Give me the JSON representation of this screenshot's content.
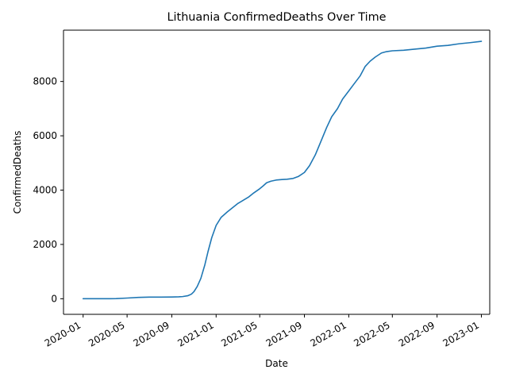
{
  "chart_data": {
    "type": "line",
    "title": "Lithuania  ConfirmedDeaths Over Time",
    "xlabel": "Date",
    "ylabel": "ConfirmedDeaths",
    "xlim": [
      "2019-11-08",
      "2023-01-24"
    ],
    "ylim": [
      -574,
      9890
    ],
    "x_ticks": [
      "2020-01",
      "2020-05",
      "2020-09",
      "2021-01",
      "2021-05",
      "2021-09",
      "2022-01",
      "2022-05",
      "2022-09",
      "2023-01"
    ],
    "y_ticks": [
      0,
      2000,
      4000,
      6000,
      8000
    ],
    "grid": false,
    "legend": "none",
    "series": [
      {
        "color": "#1f77b4",
        "x": [
          "2020-01-01",
          "2020-03-15",
          "2020-04-01",
          "2020-05-01",
          "2020-06-01",
          "2020-07-01",
          "2020-08-01",
          "2020-09-01",
          "2020-09-20",
          "2020-10-01",
          "2020-10-15",
          "2020-10-25",
          "2020-11-01",
          "2020-11-10",
          "2020-11-20",
          "2020-12-01",
          "2020-12-10",
          "2020-12-20",
          "2021-01-01",
          "2021-01-15",
          "2021-02-01",
          "2021-02-15",
          "2021-03-01",
          "2021-04-01",
          "2021-04-15",
          "2021-05-01",
          "2021-05-10",
          "2021-05-20",
          "2021-06-01",
          "2021-06-15",
          "2021-07-01",
          "2021-07-15",
          "2021-08-01",
          "2021-08-15",
          "2021-09-01",
          "2021-09-15",
          "2021-10-01",
          "2021-10-15",
          "2021-11-01",
          "2021-11-15",
          "2021-12-01",
          "2021-12-15",
          "2022-01-01",
          "2022-01-15",
          "2022-02-01",
          "2022-02-15",
          "2022-03-01",
          "2022-03-15",
          "2022-04-01",
          "2022-04-15",
          "2022-05-01",
          "2022-06-01",
          "2022-07-01",
          "2022-08-01",
          "2022-09-01",
          "2022-10-01",
          "2022-11-01",
          "2022-12-01",
          "2023-01-01"
        ],
        "values": [
          0,
          0,
          5,
          25,
          50,
          60,
          60,
          65,
          70,
          80,
          110,
          170,
          260,
          450,
          750,
          1250,
          1750,
          2250,
          2700,
          3000,
          3200,
          3350,
          3500,
          3750,
          3900,
          4050,
          4150,
          4270,
          4330,
          4370,
          4390,
          4400,
          4430,
          4500,
          4650,
          4900,
          5300,
          5750,
          6300,
          6700,
          7000,
          7350,
          7650,
          7900,
          8200,
          8550,
          8750,
          8900,
          9050,
          9100,
          9130,
          9150,
          9190,
          9230,
          9300,
          9330,
          9390,
          9430,
          9480
        ]
      }
    ]
  }
}
